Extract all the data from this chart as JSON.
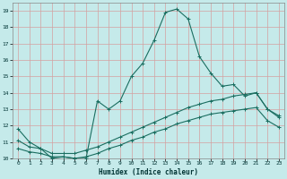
{
  "xlabel": "Humidex (Indice chaleur)",
  "bg_color": "#c5eaea",
  "grid_color": "#d4a0a0",
  "line_color": "#1a6e60",
  "xlim": [
    -0.5,
    23.5
  ],
  "ylim": [
    10,
    19.5
  ],
  "xticks": [
    0,
    1,
    2,
    3,
    4,
    5,
    6,
    7,
    8,
    9,
    10,
    11,
    12,
    13,
    14,
    15,
    16,
    17,
    18,
    19,
    20,
    21,
    22,
    23
  ],
  "yticks": [
    10,
    11,
    12,
    13,
    14,
    15,
    16,
    17,
    18,
    19
  ],
  "line1_x": [
    0,
    1,
    2,
    3,
    4,
    5,
    6,
    7,
    8,
    9,
    10,
    11,
    12,
    13,
    14,
    15,
    16,
    17,
    18,
    19,
    20,
    21,
    22,
    23
  ],
  "line1_y": [
    11.8,
    11.0,
    10.6,
    10.0,
    10.1,
    10.0,
    10.0,
    13.5,
    13.0,
    13.5,
    15.0,
    15.8,
    17.2,
    18.9,
    19.1,
    18.5,
    16.2,
    15.2,
    14.4,
    14.5,
    13.8,
    14.0,
    13.0,
    12.6
  ],
  "line2_x": [
    0,
    1,
    2,
    3,
    4,
    5,
    6,
    7,
    8,
    9,
    10,
    11,
    12,
    13,
    14,
    15,
    16,
    17,
    18,
    19,
    20,
    21,
    22,
    23
  ],
  "line2_y": [
    11.1,
    10.7,
    10.6,
    10.3,
    10.3,
    10.3,
    10.5,
    10.7,
    11.0,
    11.3,
    11.6,
    11.9,
    12.2,
    12.5,
    12.8,
    13.1,
    13.3,
    13.5,
    13.6,
    13.8,
    13.9,
    14.0,
    13.0,
    12.5
  ],
  "line3_x": [
    0,
    1,
    2,
    3,
    4,
    5,
    6,
    7,
    8,
    9,
    10,
    11,
    12,
    13,
    14,
    15,
    16,
    17,
    18,
    19,
    20,
    21,
    22,
    23
  ],
  "line3_y": [
    10.6,
    10.4,
    10.3,
    10.1,
    10.1,
    10.0,
    10.1,
    10.3,
    10.6,
    10.8,
    11.1,
    11.3,
    11.6,
    11.8,
    12.1,
    12.3,
    12.5,
    12.7,
    12.8,
    12.9,
    13.0,
    13.1,
    12.3,
    11.9
  ]
}
